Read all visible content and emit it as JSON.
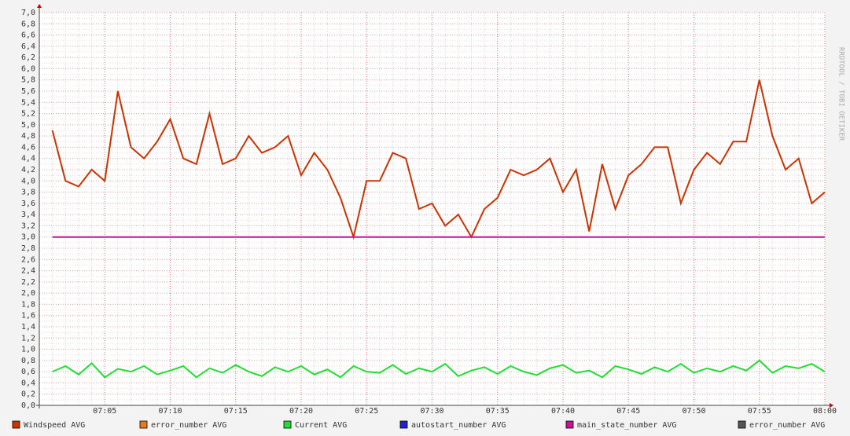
{
  "chart_data": {
    "type": "line",
    "watermark": "RRDTOOL / TOBI OETIKER",
    "x": [
      "07:01",
      "07:02",
      "07:03",
      "07:04",
      "07:05",
      "07:06",
      "07:07",
      "07:08",
      "07:09",
      "07:10",
      "07:11",
      "07:12",
      "07:13",
      "07:14",
      "07:15",
      "07:16",
      "07:17",
      "07:18",
      "07:19",
      "07:20",
      "07:21",
      "07:22",
      "07:23",
      "07:24",
      "07:25",
      "07:26",
      "07:27",
      "07:28",
      "07:29",
      "07:30",
      "07:31",
      "07:32",
      "07:33",
      "07:34",
      "07:35",
      "07:36",
      "07:37",
      "07:38",
      "07:39",
      "07:40",
      "07:41",
      "07:42",
      "07:43",
      "07:44",
      "07:45",
      "07:46",
      "07:47",
      "07:48",
      "07:49",
      "07:50",
      "07:51",
      "07:52",
      "07:53",
      "07:54",
      "07:55",
      "07:56",
      "07:57",
      "07:58",
      "07:59",
      "08:00"
    ],
    "xlim": [
      "07:00",
      "08:00"
    ],
    "xticks": [
      "07:05",
      "07:10",
      "07:15",
      "07:20",
      "07:25",
      "07:30",
      "07:35",
      "07:40",
      "07:45",
      "07:50",
      "07:55",
      "08:00"
    ],
    "ylim": [
      0,
      7
    ],
    "yticks": [
      {
        "value": 0,
        "label": "0,0"
      },
      {
        "value": 0.2,
        "label": "0,2"
      },
      {
        "value": 0.4,
        "label": "0,4"
      },
      {
        "value": 0.6,
        "label": "0,6"
      },
      {
        "value": 0.8,
        "label": "0,8"
      },
      {
        "value": 1,
        "label": "1,0"
      },
      {
        "value": 1.2,
        "label": "1,2"
      },
      {
        "value": 1.4,
        "label": "1,4"
      },
      {
        "value": 1.6,
        "label": "1,6"
      },
      {
        "value": 1.8,
        "label": "1,8"
      },
      {
        "value": 2,
        "label": "2,0"
      },
      {
        "value": 2.2,
        "label": "2,2"
      },
      {
        "value": 2.4,
        "label": "2,4"
      },
      {
        "value": 2.6,
        "label": "2,6"
      },
      {
        "value": 2.8,
        "label": "2,8"
      },
      {
        "value": 3,
        "label": "3,0"
      },
      {
        "value": 3.2,
        "label": "3,2"
      },
      {
        "value": 3.4,
        "label": "3,4"
      },
      {
        "value": 3.6,
        "label": "3,6"
      },
      {
        "value": 3.8,
        "label": "3,8"
      },
      {
        "value": 4,
        "label": "4,0"
      },
      {
        "value": 4.2,
        "label": "4,2"
      },
      {
        "value": 4.4,
        "label": "4,4"
      },
      {
        "value": 4.6,
        "label": "4,6"
      },
      {
        "value": 4.8,
        "label": "4,8"
      },
      {
        "value": 5,
        "label": "5,0"
      },
      {
        "value": 5.2,
        "label": "5,2"
      },
      {
        "value": 5.4,
        "label": "5,4"
      },
      {
        "value": 5.6,
        "label": "5,6"
      },
      {
        "value": 5.8,
        "label": "5,8"
      },
      {
        "value": 6,
        "label": "6,0"
      },
      {
        "value": 6.2,
        "label": "6,2"
      },
      {
        "value": 6.4,
        "label": "6,4"
      },
      {
        "value": 6.6,
        "label": "6,6"
      },
      {
        "value": 6.8,
        "label": "6,8"
      },
      {
        "value": 7,
        "label": "7,0"
      }
    ],
    "grid": true,
    "series": [
      {
        "name": "Windspeed AVG",
        "color": "#cc3300",
        "values": [
          4.9,
          4.0,
          3.9,
          4.2,
          4.0,
          5.6,
          4.6,
          4.4,
          4.7,
          5.1,
          4.4,
          4.3,
          5.2,
          4.3,
          4.4,
          4.8,
          4.5,
          4.6,
          4.8,
          4.1,
          4.5,
          4.2,
          3.7,
          3.0,
          4.0,
          4.0,
          4.5,
          4.4,
          3.5,
          3.6,
          3.2,
          3.4,
          3.0,
          3.5,
          3.7,
          4.2,
          4.1,
          4.2,
          4.4,
          3.8,
          4.2,
          3.1,
          4.3,
          3.5,
          4.1,
          4.3,
          4.6,
          4.6,
          3.6,
          4.2,
          4.5,
          4.3,
          4.7,
          4.7,
          5.8,
          4.8,
          4.2,
          4.4,
          3.6,
          3.8
        ]
      },
      {
        "name": "error_number AVG",
        "color": "#e87a1e",
        "values": [
          null,
          null,
          null,
          null,
          null,
          null,
          null,
          null,
          null,
          null,
          null,
          null,
          null,
          null,
          null,
          null,
          null,
          null,
          null,
          null,
          null,
          null,
          null,
          null,
          null,
          null,
          null,
          null,
          null,
          null,
          null,
          null,
          null,
          null,
          null,
          null,
          null,
          null,
          null,
          null,
          null,
          null,
          null,
          null,
          null,
          null,
          null,
          null,
          null,
          null,
          null,
          null,
          null,
          null,
          null,
          null,
          null,
          null,
          null,
          null
        ]
      },
      {
        "name": "Current AVG",
        "color": "#22dd33",
        "values": [
          0.6,
          0.7,
          0.55,
          0.75,
          0.5,
          0.65,
          0.6,
          0.7,
          0.55,
          0.62,
          0.7,
          0.5,
          0.66,
          0.58,
          0.72,
          0.6,
          0.52,
          0.68,
          0.6,
          0.7,
          0.55,
          0.64,
          0.5,
          0.7,
          0.6,
          0.58,
          0.72,
          0.56,
          0.66,
          0.6,
          0.74,
          0.52,
          0.62,
          0.68,
          0.56,
          0.7,
          0.6,
          0.54,
          0.66,
          0.72,
          0.58,
          0.62,
          0.5,
          0.7,
          0.64,
          0.56,
          0.68,
          0.6,
          0.74,
          0.58,
          0.66,
          0.6,
          0.7,
          0.62,
          0.8,
          0.58,
          0.7,
          0.66,
          0.74,
          0.6
        ]
      },
      {
        "name": "autostart_number AVG",
        "color": "#2222cc",
        "values": [
          null,
          null,
          null,
          null,
          null,
          null,
          null,
          null,
          null,
          null,
          null,
          null,
          null,
          null,
          null,
          null,
          null,
          null,
          null,
          null,
          null,
          null,
          null,
          null,
          null,
          null,
          null,
          null,
          null,
          null,
          null,
          null,
          null,
          null,
          null,
          null,
          null,
          null,
          null,
          null,
          null,
          null,
          null,
          null,
          null,
          null,
          null,
          null,
          null,
          null,
          null,
          null,
          null,
          null,
          null,
          null,
          null,
          null,
          null,
          null
        ]
      },
      {
        "name": "main_state_number AVG",
        "color": "#cc1199",
        "values": [
          3,
          3,
          3,
          3,
          3,
          3,
          3,
          3,
          3,
          3,
          3,
          3,
          3,
          3,
          3,
          3,
          3,
          3,
          3,
          3,
          3,
          3,
          3,
          3,
          3,
          3,
          3,
          3,
          3,
          3,
          3,
          3,
          3,
          3,
          3,
          3,
          3,
          3,
          3,
          3,
          3,
          3,
          3,
          3,
          3,
          3,
          3,
          3,
          3,
          3,
          3,
          3,
          3,
          3,
          3,
          3,
          3,
          3,
          3,
          3
        ]
      },
      {
        "name": "error_number AVG",
        "color": "#555555",
        "values": [
          null,
          null,
          null,
          null,
          null,
          null,
          null,
          null,
          null,
          null,
          null,
          null,
          null,
          null,
          null,
          null,
          null,
          null,
          null,
          null,
          null,
          null,
          null,
          null,
          null,
          null,
          null,
          null,
          null,
          null,
          null,
          null,
          null,
          null,
          null,
          null,
          null,
          null,
          null,
          null,
          null,
          null,
          null,
          null,
          null,
          null,
          null,
          null,
          null,
          null,
          null,
          null,
          null,
          null,
          null,
          null,
          null,
          null,
          null,
          null
        ]
      }
    ]
  }
}
